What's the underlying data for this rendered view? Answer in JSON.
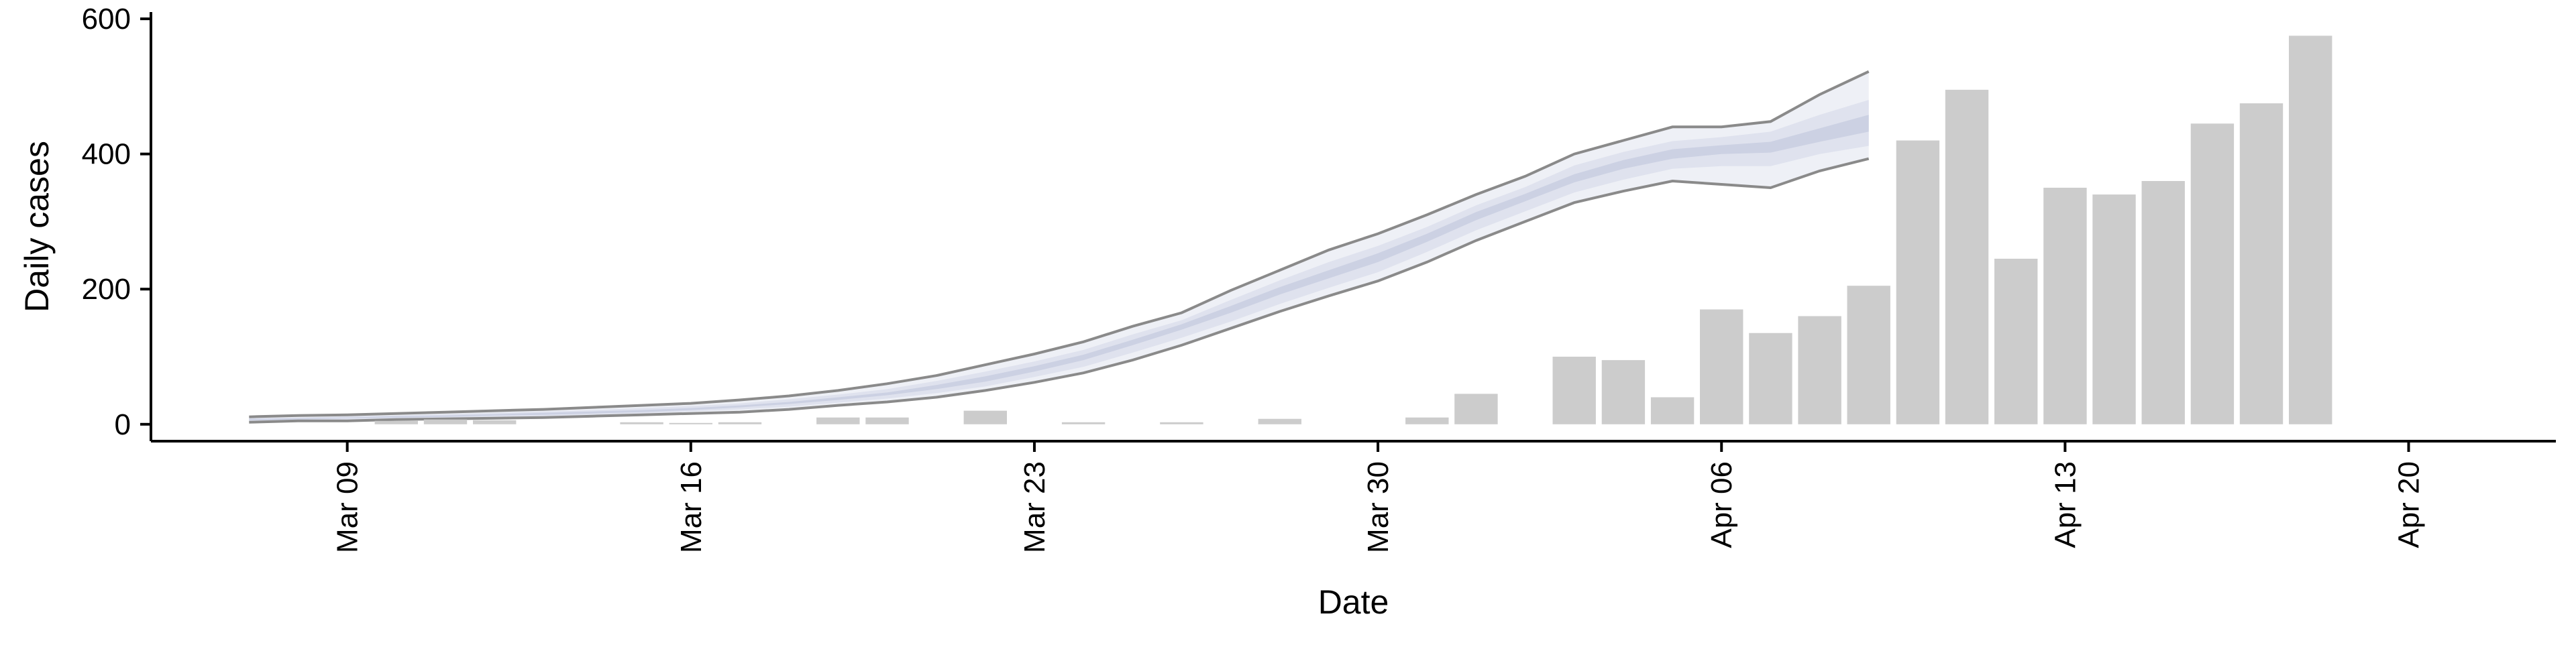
{
  "chart_data": {
    "type": "bar",
    "xlabel": "Date",
    "ylabel": "Daily cases",
    "ylim": [
      -25,
      610
    ],
    "xlim": [
      "2020-03-05",
      "2020-04-23"
    ],
    "yticks": [
      0,
      200,
      400,
      600
    ],
    "xticks": [
      {
        "date": "2020-03-09",
        "label": "Mar 09"
      },
      {
        "date": "2020-03-16",
        "label": "Mar 16"
      },
      {
        "date": "2020-03-23",
        "label": "Mar 23"
      },
      {
        "date": "2020-03-30",
        "label": "Mar 30"
      },
      {
        "date": "2020-04-06",
        "label": "Apr 06"
      },
      {
        "date": "2020-04-13",
        "label": "Apr 13"
      },
      {
        "date": "2020-04-20",
        "label": "Apr 20"
      }
    ],
    "bars": {
      "color": "#cccccc",
      "dates": [
        "2020-03-07",
        "2020-03-08",
        "2020-03-09",
        "2020-03-10",
        "2020-03-11",
        "2020-03-12",
        "2020-03-13",
        "2020-03-14",
        "2020-03-15",
        "2020-03-16",
        "2020-03-17",
        "2020-03-18",
        "2020-03-19",
        "2020-03-20",
        "2020-03-21",
        "2020-03-22",
        "2020-03-23",
        "2020-03-24",
        "2020-03-25",
        "2020-03-26",
        "2020-03-27",
        "2020-03-28",
        "2020-03-29",
        "2020-03-30",
        "2020-03-31",
        "2020-04-01",
        "2020-04-02",
        "2020-04-03",
        "2020-04-04",
        "2020-04-05",
        "2020-04-06",
        "2020-04-07",
        "2020-04-08",
        "2020-04-09",
        "2020-04-10",
        "2020-04-11",
        "2020-04-12",
        "2020-04-13",
        "2020-04-14",
        "2020-04-15",
        "2020-04-16",
        "2020-04-17",
        "2020-04-18"
      ],
      "values": [
        0,
        0,
        0,
        5,
        7,
        6,
        0,
        0,
        3,
        2,
        3,
        0,
        10,
        10,
        0,
        20,
        0,
        3,
        0,
        3,
        0,
        8,
        0,
        0,
        10,
        45,
        0,
        100,
        95,
        40,
        170,
        135,
        160,
        205,
        420,
        495,
        245,
        350,
        340,
        360,
        445,
        475,
        575
      ]
    },
    "projection": {
      "dates": [
        "2020-03-07",
        "2020-03-08",
        "2020-03-09",
        "2020-03-10",
        "2020-03-11",
        "2020-03-12",
        "2020-03-13",
        "2020-03-14",
        "2020-03-15",
        "2020-03-16",
        "2020-03-17",
        "2020-03-18",
        "2020-03-19",
        "2020-03-20",
        "2020-03-21",
        "2020-03-22",
        "2020-03-23",
        "2020-03-24",
        "2020-03-25",
        "2020-03-26",
        "2020-03-27",
        "2020-03-28",
        "2020-03-29",
        "2020-03-30",
        "2020-03-31",
        "2020-04-01",
        "2020-04-02",
        "2020-04-03",
        "2020-04-04",
        "2020-04-05",
        "2020-04-06",
        "2020-04-07",
        "2020-04-08",
        "2020-04-09"
      ],
      "lower_95": [
        3,
        5,
        5,
        7,
        8,
        9,
        10,
        12,
        14,
        16,
        18,
        22,
        28,
        33,
        40,
        50,
        62,
        76,
        95,
        117,
        142,
        167,
        190,
        212,
        240,
        272,
        300,
        328,
        345,
        360,
        355,
        350,
        375,
        393
      ],
      "upper_95": [
        11,
        13,
        14,
        16,
        18,
        20,
        22,
        25,
        28,
        31,
        36,
        42,
        50,
        60,
        72,
        88,
        104,
        122,
        145,
        165,
        198,
        228,
        258,
        282,
        310,
        340,
        367,
        400,
        420,
        440,
        440,
        448,
        488,
        522
      ],
      "lower_80": [
        5,
        6,
        7,
        8,
        10,
        11,
        12,
        14,
        16,
        19,
        22,
        26,
        32,
        38,
        46,
        56,
        70,
        85,
        106,
        128,
        152,
        178,
        202,
        225,
        255,
        287,
        315,
        343,
        362,
        378,
        382,
        382,
        400,
        412
      ],
      "upper_80": [
        9,
        10,
        12,
        13,
        15,
        17,
        19,
        21,
        24,
        27,
        31,
        37,
        44,
        52,
        64,
        78,
        93,
        110,
        133,
        154,
        184,
        213,
        240,
        264,
        292,
        324,
        351,
        383,
        403,
        419,
        425,
        433,
        458,
        480
      ],
      "lower_50": [
        6,
        7,
        9,
        10,
        11,
        13,
        14,
        16,
        18,
        21,
        25,
        30,
        36,
        43,
        52,
        63,
        78,
        95,
        117,
        140,
        165,
        192,
        216,
        240,
        270,
        302,
        330,
        358,
        378,
        393,
        400,
        402,
        418,
        433
      ],
      "upper_50": [
        8,
        9,
        10,
        12,
        13,
        15,
        17,
        19,
        21,
        24,
        28,
        33,
        40,
        47,
        58,
        71,
        86,
        103,
        125,
        148,
        175,
        203,
        228,
        253,
        282,
        314,
        341,
        370,
        391,
        407,
        413,
        418,
        438,
        458
      ],
      "colors": {
        "outer": "#eef0f6",
        "middle": "#dfe2ee",
        "inner": "#ccd1e3",
        "edge": "#8a8a8a"
      }
    }
  }
}
